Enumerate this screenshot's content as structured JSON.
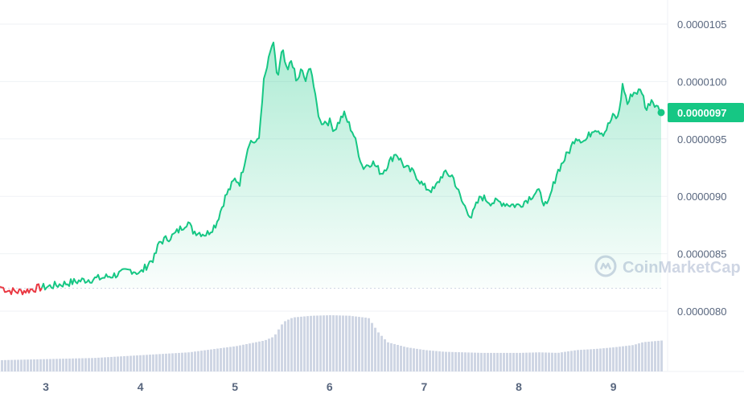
{
  "chart_data": {
    "type": "area",
    "x_unit": "day",
    "x_ticks": [
      "3",
      "4",
      "5",
      "6",
      "7",
      "8",
      "9"
    ],
    "y_ticks": [
      "0.0000105",
      "0.0000100",
      "0.0000095",
      "0.0000090",
      "0.0000085",
      "0.0000080"
    ],
    "ylim": [
      7.95e-06,
      1.065e-06
    ],
    "open_reference_price": 8.2e-06,
    "current_price_label": "0.0000097",
    "grid": "horizontal",
    "series": [
      {
        "role": "price",
        "x": [
          2.5,
          2.6,
          2.7,
          2.8,
          2.9,
          3.0,
          3.2,
          3.4,
          3.6,
          3.8,
          3.9,
          4.0,
          4.1,
          4.15,
          4.2,
          4.35,
          4.5,
          4.55,
          4.7,
          4.8,
          4.9,
          5.0,
          5.05,
          5.15,
          5.25,
          5.3,
          5.4,
          5.45,
          5.5,
          5.55,
          5.6,
          5.65,
          5.7,
          5.75,
          5.8,
          5.85,
          5.9,
          6.0,
          6.05,
          6.15,
          6.25,
          6.3,
          6.35,
          6.45,
          6.55,
          6.7,
          6.8,
          6.9,
          7.0,
          7.1,
          7.2,
          7.3,
          7.4,
          7.5,
          7.55,
          7.6,
          7.7,
          7.8,
          7.9,
          8.0,
          8.1,
          8.2,
          8.3,
          8.4,
          8.5,
          8.55,
          8.6,
          8.7,
          8.8,
          8.9,
          9.0,
          9.05,
          9.1,
          9.15,
          9.2,
          9.3,
          9.35,
          9.4,
          9.45,
          9.5
        ],
        "values": [
          8.22e-06,
          8.18e-06,
          8.17e-06,
          8.18e-06,
          8.2e-06,
          8.21e-06,
          8.24e-06,
          8.27e-06,
          8.29e-06,
          8.33e-06,
          8.36e-06,
          8.33e-06,
          8.43e-06,
          8.47e-06,
          8.6e-06,
          8.66e-06,
          8.78e-06,
          8.7e-06,
          8.67e-06,
          8.76e-06,
          9e-06,
          9.15e-06,
          9.12e-06,
          9.48e-06,
          9.47e-06,
          9.98e-06,
          1.035e-05,
          1.002e-05,
          1.028e-05,
          1.007e-05,
          1.02e-05,
          9.98e-06,
          1.01e-05,
          1e-05,
          1.015e-05,
          9.85e-06,
          9.65e-06,
          9.65e-06,
          9.58e-06,
          9.72e-06,
          9.55e-06,
          9.4e-06,
          9.25e-06,
          9.3e-06,
          9.2e-06,
          9.38e-06,
          9.25e-06,
          9.2e-06,
          9.08e-06,
          9.05e-06,
          9.2e-06,
          9.18e-06,
          8.95e-06,
          8.82e-06,
          8.92e-06,
          9e-06,
          8.95e-06,
          8.95e-06,
          8.93e-06,
          8.92e-06,
          8.98e-06,
          9.05e-06,
          8.9e-06,
          9.2e-06,
          9.35e-06,
          9.42e-06,
          9.52e-06,
          9.48e-06,
          9.6e-06,
          9.55e-06,
          9.7e-06,
          9.68e-06,
          9.98e-06,
          9.8e-06,
          9.9e-06,
          9.92e-06,
          9.75e-06,
          9.85e-06,
          9.8e-06,
          9.73e-06
        ]
      },
      {
        "role": "volume_relative",
        "x": [
          2.5,
          3.0,
          3.5,
          4.0,
          4.5,
          5.0,
          5.3,
          5.4,
          5.5,
          5.6,
          5.8,
          6.0,
          6.2,
          6.4,
          6.5,
          6.6,
          6.8,
          7.0,
          7.2,
          7.4,
          7.6,
          7.8,
          8.0,
          8.2,
          8.4,
          8.6,
          8.8,
          9.0,
          9.2,
          9.3,
          9.5
        ],
        "values": [
          0.2,
          0.22,
          0.24,
          0.29,
          0.34,
          0.45,
          0.55,
          0.62,
          0.88,
          0.96,
          0.99,
          1.0,
          0.99,
          0.95,
          0.7,
          0.52,
          0.43,
          0.38,
          0.35,
          0.34,
          0.33,
          0.33,
          0.33,
          0.34,
          0.33,
          0.38,
          0.4,
          0.43,
          0.47,
          0.52,
          0.55
        ]
      }
    ],
    "colors": {
      "up": "#16c784",
      "down": "#ea3943",
      "grid": "#eff2f5",
      "volume_bar": "#cfd6e4",
      "axis_text": "#58667e",
      "watermark": "#cfd6e4"
    }
  },
  "watermark": {
    "text": "CoinMarketCap",
    "icon": "coinmarketcap-logo-icon"
  }
}
